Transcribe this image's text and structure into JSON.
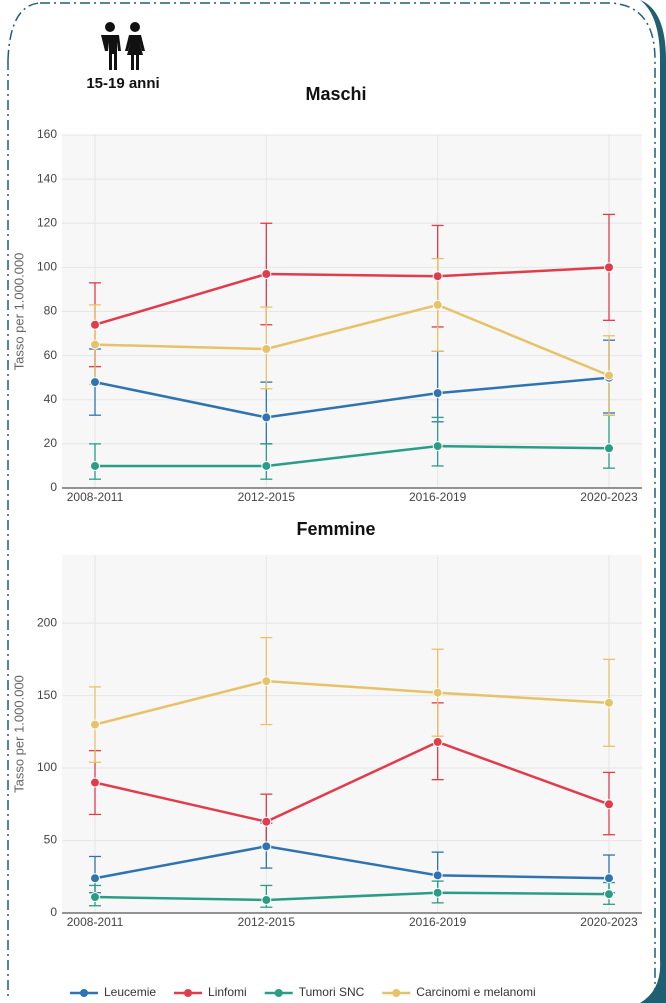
{
  "header": {
    "age": "15-19 anni"
  },
  "legend": [
    {
      "name": "Leucemie",
      "color": "#2e74b0"
    },
    {
      "name": "Linfomi",
      "color": "#e03c4c"
    },
    {
      "name": "Tumori SNC",
      "color": "#2a9d86"
    },
    {
      "name": "Carcinomi e melanomi",
      "color": "#e8c268"
    }
  ],
  "chart_data": [
    {
      "type": "line",
      "title": "Maschi",
      "y_label": "Tasso per 1.000.000",
      "categories": [
        "2008-2011",
        "2012-2015",
        "2016-2019",
        "2020-2023"
      ],
      "ylim": [
        0,
        160
      ],
      "yticks": [
        0,
        20,
        40,
        60,
        80,
        100,
        120,
        140,
        160
      ],
      "grid": true,
      "series": [
        {
          "values": [
            48,
            32,
            43,
            50
          ],
          "lower": [
            33,
            20,
            30,
            34
          ],
          "upper": [
            63,
            48,
            62,
            67
          ]
        },
        {
          "values": [
            74,
            97,
            96,
            100
          ],
          "lower": [
            55,
            74,
            73,
            76
          ],
          "upper": [
            93,
            120,
            119,
            124
          ]
        },
        {
          "values": [
            10,
            10,
            19,
            18
          ],
          "lower": [
            4,
            4,
            10,
            9
          ],
          "upper": [
            20,
            20,
            32,
            33
          ]
        },
        {
          "values": [
            65,
            63,
            83,
            51
          ],
          "lower": [
            47,
            45,
            62,
            33
          ],
          "upper": [
            83,
            82,
            104,
            69
          ]
        }
      ]
    },
    {
      "type": "line",
      "title": "Femmine",
      "y_label": "Tasso per 1.000.000",
      "categories": [
        "2008-2011",
        "2012-2015",
        "2016-2019",
        "2020-2023"
      ],
      "ylim": [
        0,
        247
      ],
      "yticks": [
        0,
        50,
        100,
        150,
        200
      ],
      "grid": true,
      "series": [
        {
          "values": [
            24,
            46,
            26,
            24
          ],
          "lower": [
            14,
            31,
            14,
            14
          ],
          "upper": [
            39,
            62,
            42,
            40
          ]
        },
        {
          "values": [
            90,
            63,
            118,
            75
          ],
          "lower": [
            68,
            46,
            92,
            54
          ],
          "upper": [
            112,
            82,
            145,
            97
          ]
        },
        {
          "values": [
            11,
            9,
            14,
            13
          ],
          "lower": [
            5,
            4,
            7,
            6
          ],
          "upper": [
            19,
            19,
            22,
            21
          ]
        },
        {
          "values": [
            130,
            160,
            152,
            145
          ],
          "lower": [
            104,
            130,
            122,
            115
          ],
          "upper": [
            156,
            190,
            182,
            175
          ]
        }
      ]
    }
  ]
}
